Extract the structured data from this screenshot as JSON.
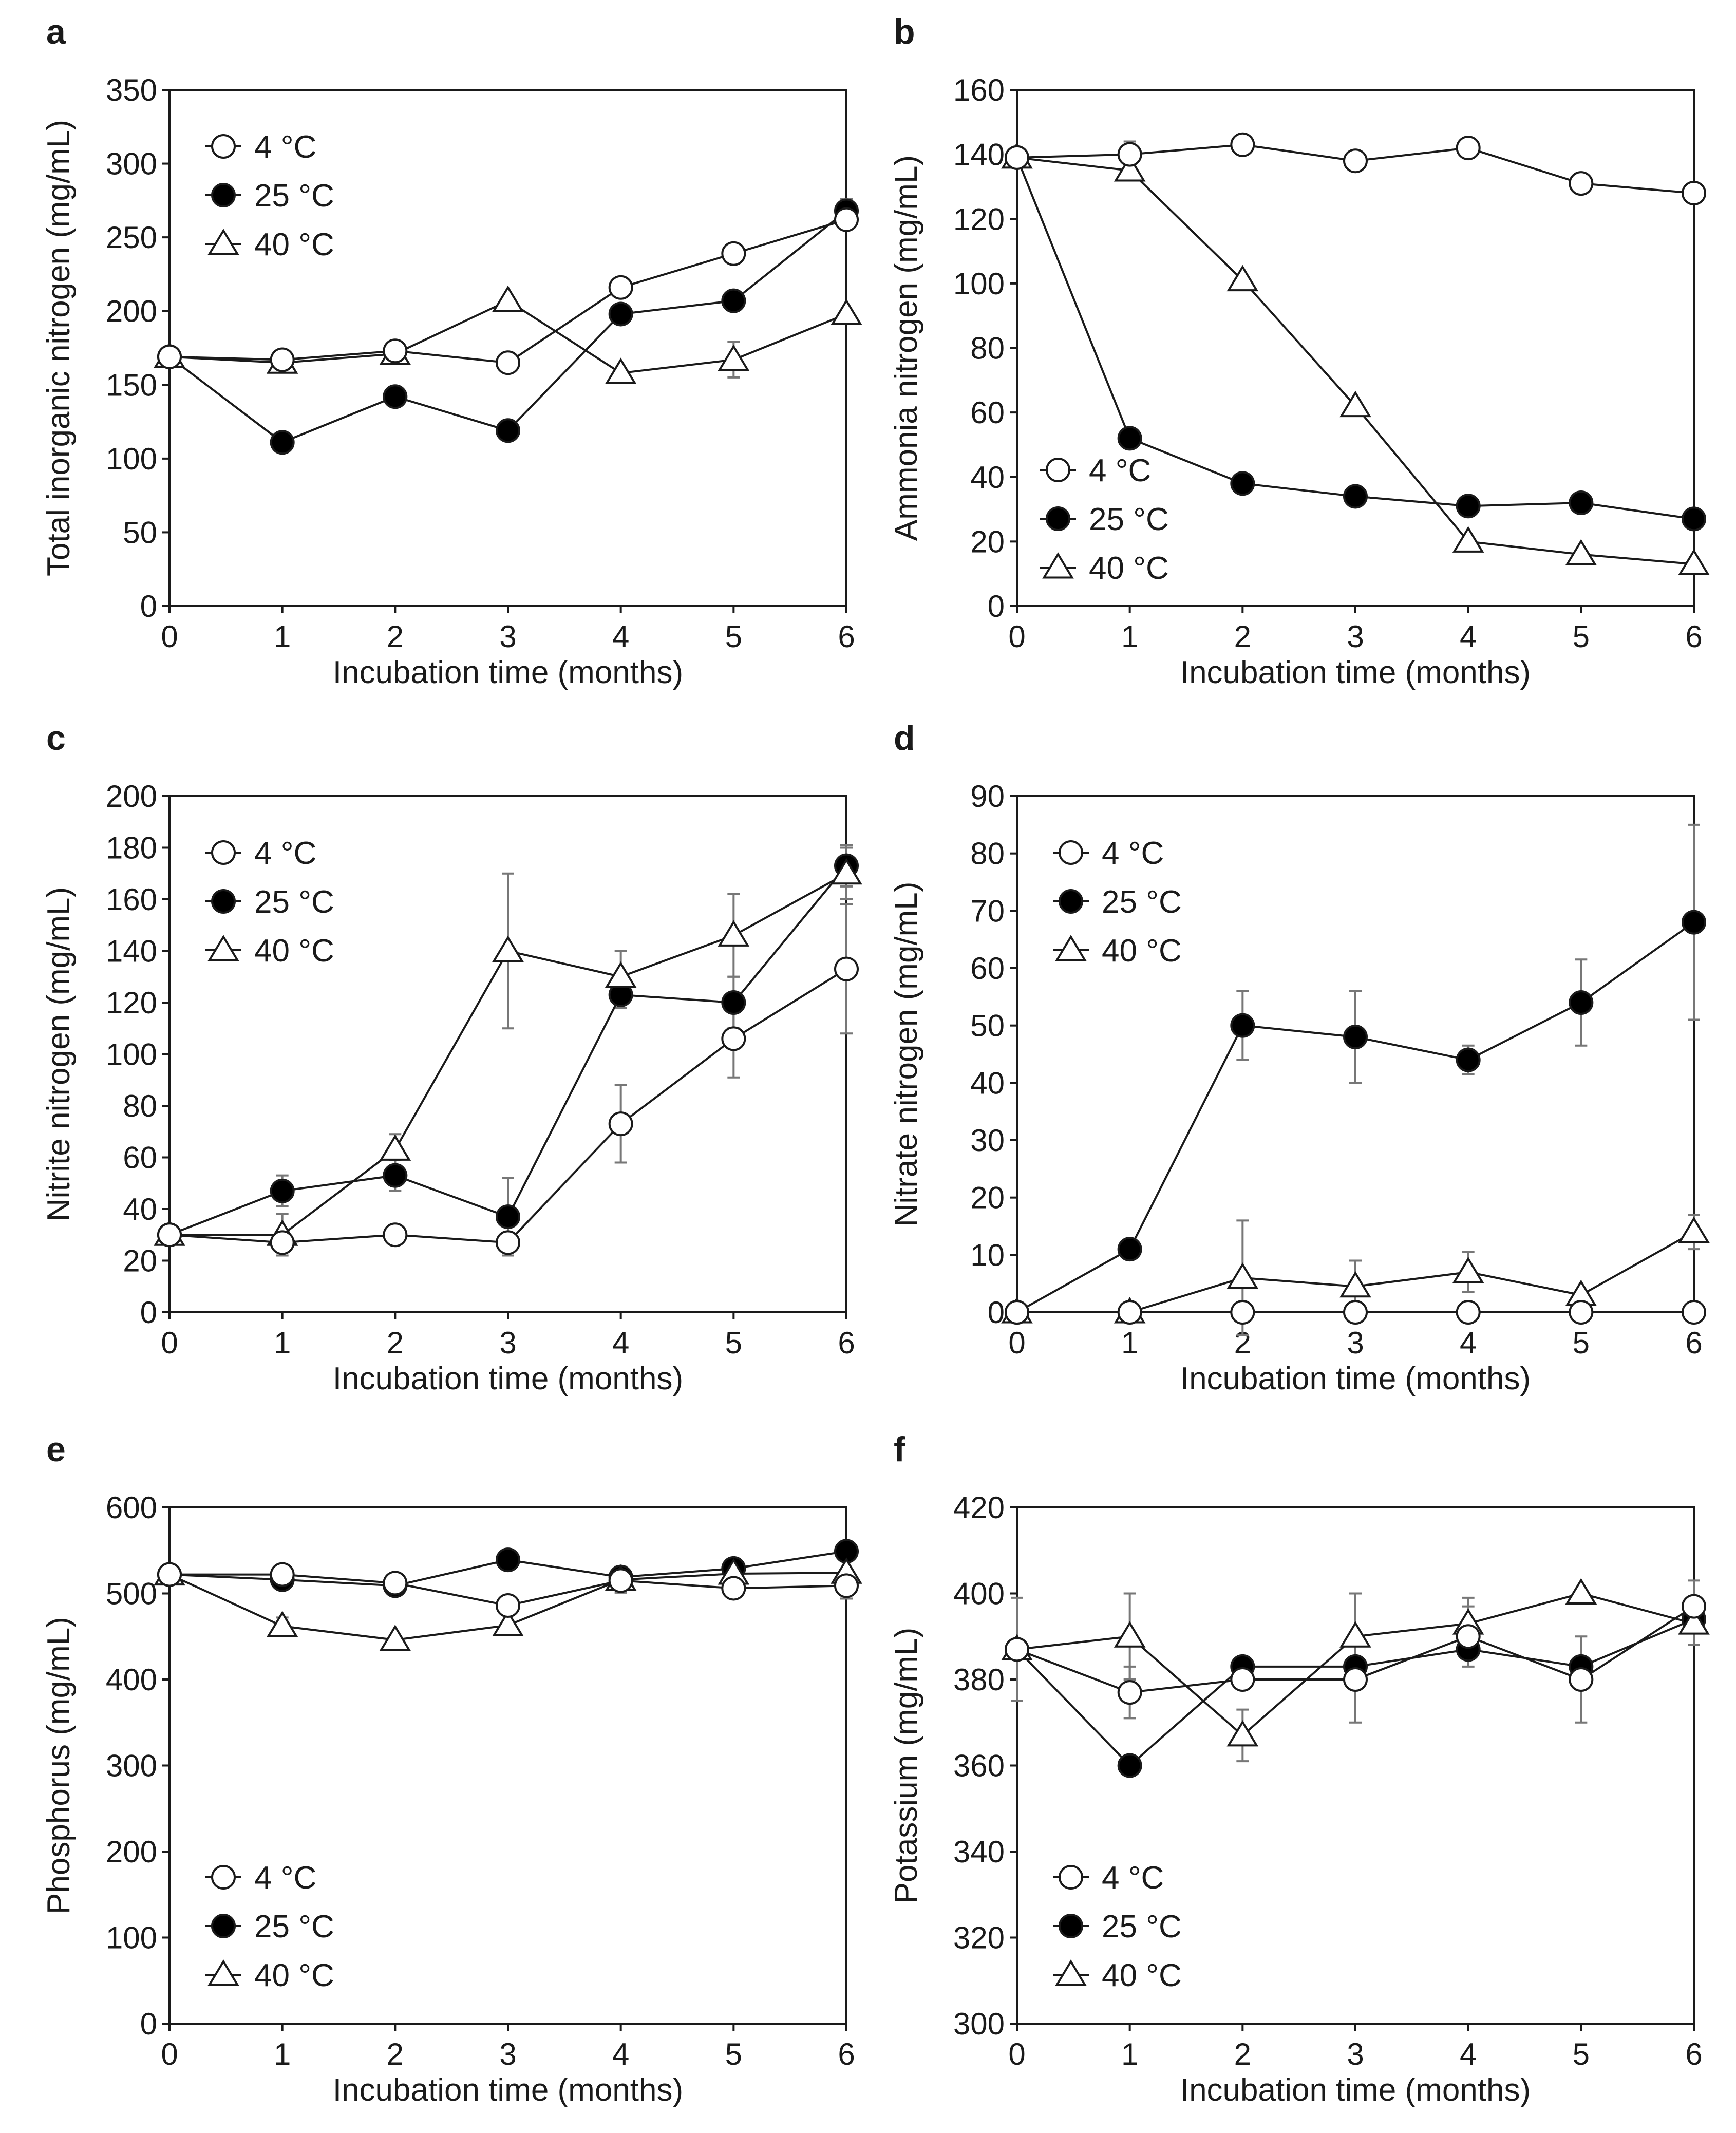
{
  "figure": {
    "series_names": [
      "4 °C",
      "25 °C",
      "40 °C"
    ],
    "marker_types": [
      "open-circle",
      "filled-circle",
      "open-triangle"
    ],
    "colors": {
      "line": "#1a1a1a",
      "marker_fill_open": "#ffffff",
      "marker_fill_filled": "#000000",
      "error_bar": "#777777"
    }
  },
  "chart_data": [
    {
      "panel": "a",
      "type": "line",
      "ylabel": "Total inorganic nitrogen (mg/mL)",
      "xlabel": "Incubation time (months)",
      "x": [
        0,
        1,
        2,
        3,
        4,
        5,
        6
      ],
      "xlim": [
        0,
        6
      ],
      "ylim": [
        0,
        350
      ],
      "yticks": [
        0,
        50,
        100,
        150,
        200,
        250,
        300,
        350
      ],
      "legend_position": "top-left",
      "series": [
        {
          "name": "4 °C",
          "marker": "open-circle",
          "values": [
            169,
            167,
            173,
            165,
            216,
            239,
            262
          ],
          "errors": [
            0,
            0,
            0,
            0,
            0,
            0,
            0
          ]
        },
        {
          "name": "25 °C",
          "marker": "filled-circle",
          "values": [
            169,
            111,
            142,
            119,
            198,
            207,
            268
          ],
          "errors": [
            0,
            0,
            0,
            0,
            0,
            0,
            8
          ]
        },
        {
          "name": "40 °C",
          "marker": "open-triangle",
          "values": [
            169,
            165,
            171,
            207,
            158,
            167,
            198
          ],
          "errors": [
            0,
            0,
            0,
            0,
            0,
            12,
            0
          ]
        }
      ]
    },
    {
      "panel": "b",
      "type": "line",
      "ylabel": "Ammonia nitrogen (mg/mL)",
      "xlabel": "Incubation time (months)",
      "x": [
        0,
        1,
        2,
        3,
        4,
        5,
        6
      ],
      "xlim": [
        0,
        6
      ],
      "ylim": [
        0,
        160
      ],
      "yticks": [
        0,
        20,
        40,
        60,
        80,
        100,
        120,
        140,
        160
      ],
      "legend_position": "bottom-left",
      "series": [
        {
          "name": "4 °C",
          "marker": "open-circle",
          "values": [
            139,
            140,
            143,
            138,
            142,
            131,
            128
          ],
          "errors": [
            0,
            4,
            3,
            2,
            3,
            3,
            0
          ]
        },
        {
          "name": "25 °C",
          "marker": "filled-circle",
          "values": [
            139,
            52,
            38,
            34,
            31,
            32,
            27
          ],
          "errors": [
            0,
            0,
            0,
            0,
            0,
            0,
            0
          ]
        },
        {
          "name": "40 °C",
          "marker": "open-triangle",
          "values": [
            139,
            135,
            101,
            62,
            20,
            16,
            13
          ],
          "errors": [
            0,
            0,
            0,
            0,
            0,
            0,
            0
          ]
        }
      ]
    },
    {
      "panel": "c",
      "type": "line",
      "ylabel": "Nitrite nitrogen (mg/mL)",
      "xlabel": "Incubation time (months)",
      "x": [
        0,
        1,
        2,
        3,
        4,
        5,
        6
      ],
      "xlim": [
        0,
        6
      ],
      "ylim": [
        0,
        200
      ],
      "yticks": [
        0,
        20,
        40,
        60,
        80,
        100,
        120,
        140,
        160,
        180,
        200
      ],
      "legend_position": "top-left",
      "series": [
        {
          "name": "4 °C",
          "marker": "open-circle",
          "values": [
            30,
            27,
            30,
            27,
            73,
            106,
            133
          ],
          "errors": [
            0,
            0,
            0,
            0,
            15,
            15,
            25
          ]
        },
        {
          "name": "25 °C",
          "marker": "filled-circle",
          "values": [
            30,
            47,
            53,
            37,
            123,
            120,
            173
          ],
          "errors": [
            0,
            6,
            6,
            15,
            5,
            10,
            8
          ]
        },
        {
          "name": "40 °C",
          "marker": "open-triangle",
          "values": [
            30,
            30,
            63,
            140,
            130,
            146,
            170
          ],
          "errors": [
            0,
            8,
            6,
            30,
            10,
            16,
            10
          ]
        }
      ]
    },
    {
      "panel": "d",
      "type": "line",
      "ylabel": "Nitrate nitrogen (mg/mL)",
      "xlabel": "Incubation time (months)",
      "x": [
        0,
        1,
        2,
        3,
        4,
        5,
        6
      ],
      "xlim": [
        0,
        6
      ],
      "ylim": [
        0,
        90
      ],
      "yticks": [
        0,
        10,
        20,
        30,
        40,
        50,
        60,
        70,
        80,
        90
      ],
      "legend_position": "top-left",
      "series": [
        {
          "name": "4 °C",
          "marker": "open-circle",
          "values": [
            0,
            0,
            0,
            0,
            0,
            0,
            0
          ],
          "errors": [
            0,
            0,
            0,
            0,
            0,
            0,
            0
          ]
        },
        {
          "name": "25 °C",
          "marker": "filled-circle",
          "values": [
            0,
            11,
            50,
            48,
            44,
            54,
            68
          ],
          "errors": [
            0,
            0,
            6,
            8,
            2.5,
            7.5,
            17
          ]
        },
        {
          "name": "40 °C",
          "marker": "open-triangle",
          "values": [
            0,
            0,
            6,
            4.5,
            7,
            3,
            14
          ],
          "errors": [
            0,
            0,
            10,
            4.5,
            3.5,
            0,
            3
          ]
        }
      ]
    },
    {
      "panel": "e",
      "type": "line",
      "ylabel": "Phosphorus (mg/mL)",
      "xlabel": "Incubation time (months)",
      "x": [
        0,
        1,
        2,
        3,
        4,
        5,
        6
      ],
      "xlim": [
        0,
        6
      ],
      "ylim": [
        0,
        600
      ],
      "yticks": [
        0,
        100,
        200,
        300,
        400,
        500,
        600
      ],
      "legend_position": "bottom-left",
      "series": [
        {
          "name": "4 °C",
          "marker": "open-circle",
          "values": [
            522,
            522,
            512,
            486,
            515,
            506,
            509
          ],
          "errors": [
            0,
            0,
            0,
            0,
            0,
            0,
            15
          ]
        },
        {
          "name": "25 °C",
          "marker": "filled-circle",
          "values": [
            522,
            516,
            509,
            539,
            519,
            529,
            549
          ],
          "errors": [
            0,
            0,
            0,
            8,
            0,
            0,
            0
          ]
        },
        {
          "name": "40 °C",
          "marker": "open-triangle",
          "values": [
            522,
            462,
            446,
            463,
            516,
            523,
            524
          ],
          "errors": [
            0,
            10,
            0,
            0,
            15,
            0,
            0
          ]
        }
      ]
    },
    {
      "panel": "f",
      "type": "line",
      "ylabel": "Potassium (mg/mL)",
      "xlabel": "Incubation time (months)",
      "x": [
        0,
        1,
        2,
        3,
        4,
        5,
        6
      ],
      "xlim": [
        0,
        6
      ],
      "ylim": [
        300,
        420
      ],
      "yticks": [
        300,
        320,
        340,
        360,
        380,
        400,
        420
      ],
      "legend_position": "bottom-left",
      "series": [
        {
          "name": "4 °C",
          "marker": "open-circle",
          "values": [
            387,
            377,
            380,
            380,
            390,
            380,
            397
          ],
          "errors": [
            12,
            6,
            2,
            10,
            7,
            10,
            6
          ]
        },
        {
          "name": "25 °C",
          "marker": "filled-circle",
          "values": [
            387,
            360,
            383,
            383,
            387,
            383,
            394
          ],
          "errors": [
            0,
            0,
            0,
            0,
            0,
            0,
            0
          ]
        },
        {
          "name": "40 °C",
          "marker": "open-triangle",
          "values": [
            387,
            390,
            367,
            390,
            393,
            400,
            393
          ],
          "errors": [
            0,
            10,
            6,
            10,
            6,
            0,
            5
          ]
        }
      ]
    }
  ]
}
